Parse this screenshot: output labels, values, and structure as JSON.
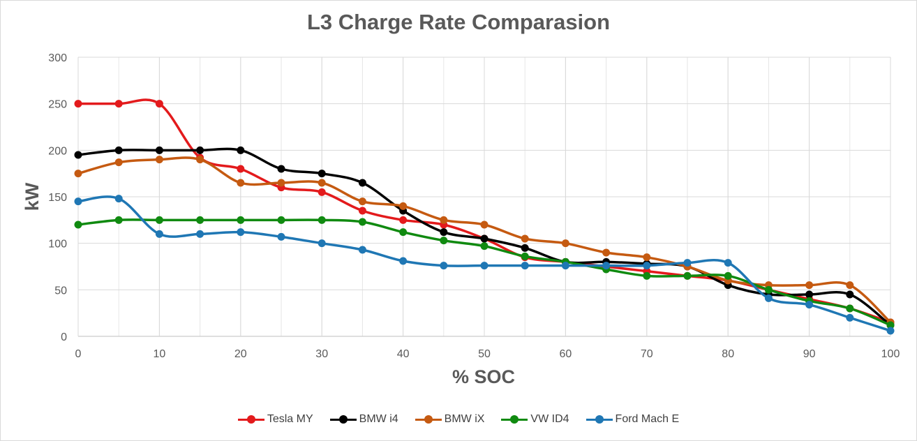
{
  "chart_data": {
    "type": "line",
    "title": "L3 Charge Rate Comparasion",
    "xlabel": "% SOC",
    "ylabel": "kW",
    "xlim": [
      0,
      100
    ],
    "ylim": [
      0,
      300
    ],
    "x_ticks": [
      0,
      10,
      20,
      30,
      40,
      50,
      60,
      70,
      80,
      90,
      100
    ],
    "y_ticks": [
      0,
      50,
      100,
      150,
      200,
      250,
      300
    ],
    "grid": true,
    "smooth": true,
    "legend_position": "bottom",
    "x": [
      0,
      5,
      10,
      15,
      20,
      25,
      30,
      35,
      40,
      45,
      50,
      55,
      60,
      65,
      70,
      75,
      80,
      85,
      90,
      95,
      100
    ],
    "series": [
      {
        "name": "Tesla MY",
        "color": "#e31a1c",
        "values": [
          250,
          250,
          250,
          192,
          180,
          160,
          155,
          135,
          125,
          120,
          105,
          85,
          80,
          75,
          70,
          65,
          60,
          50,
          40,
          30,
          15
        ]
      },
      {
        "name": "BMW i4",
        "color": "#000000",
        "values": [
          195,
          200,
          200,
          200,
          200,
          180,
          175,
          165,
          135,
          112,
          105,
          95,
          80,
          80,
          78,
          75,
          55,
          45,
          45,
          45,
          12
        ]
      },
      {
        "name": "BMW iX",
        "color": "#c55a11",
        "values": [
          175,
          187,
          190,
          190,
          165,
          165,
          165,
          145,
          140,
          125,
          120,
          105,
          100,
          90,
          85,
          75,
          60,
          55,
          55,
          55,
          15
        ]
      },
      {
        "name": "VW ID4",
        "color": "#108a10",
        "values": [
          120,
          125,
          125,
          125,
          125,
          125,
          125,
          123,
          112,
          103,
          97,
          86,
          80,
          72,
          65,
          65,
          65,
          50,
          38,
          30,
          12
        ]
      },
      {
        "name": "Ford Mach E",
        "color": "#1f77b4",
        "values": [
          145,
          148,
          110,
          110,
          112,
          107,
          100,
          93,
          81,
          76,
          76,
          76,
          76,
          76,
          76,
          79,
          79,
          41,
          34,
          20,
          6
        ]
      }
    ]
  }
}
